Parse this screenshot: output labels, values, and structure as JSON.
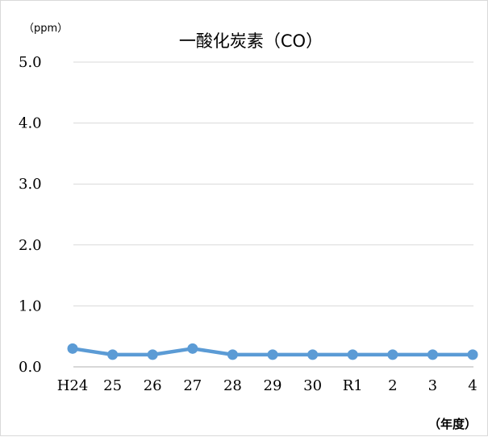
{
  "chart_data": {
    "type": "line",
    "title": "一酸化炭素（CO）",
    "ylabel": "（ppm）",
    "xlabel": "（年度）",
    "categories": [
      "H24",
      "25",
      "26",
      "27",
      "28",
      "29",
      "30",
      "R1",
      "2",
      "3",
      "4"
    ],
    "series": [
      {
        "values": [
          0.3,
          0.2,
          0.2,
          0.3,
          0.2,
          0.2,
          0.2,
          0.2,
          0.2,
          0.2,
          0.2
        ]
      }
    ],
    "ylim": [
      0,
      5
    ],
    "yticks": [
      "0.0",
      "1.0",
      "2.0",
      "3.0",
      "4.0",
      "5.0"
    ],
    "grid": true,
    "legend": "none"
  },
  "colors": {
    "series": "#5b9bd5"
  }
}
